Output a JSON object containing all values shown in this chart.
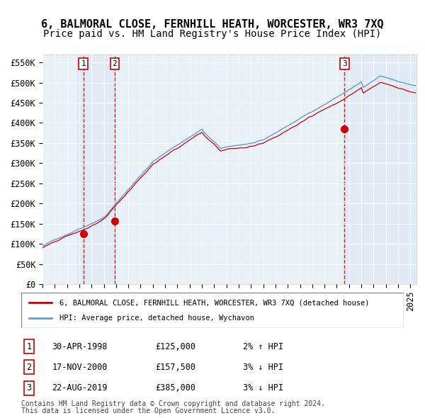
{
  "title": "6, BALMORAL CLOSE, FERNHILL HEATH, WORCESTER, WR3 7XQ",
  "subtitle": "Price paid vs. HM Land Registry's House Price Index (HPI)",
  "transactions": [
    {
      "label": "1",
      "date": "30-APR-1998",
      "price": 125000,
      "year": 1998.33,
      "hpi_pct": "2% ↑ HPI"
    },
    {
      "label": "2",
      "date": "17-NOV-2000",
      "price": 157500,
      "year": 2000.88,
      "hpi_pct": "3% ↓ HPI"
    },
    {
      "label": "3",
      "date": "22-AUG-2019",
      "price": 385000,
      "year": 2019.63,
      "hpi_pct": "3% ↓ HPI"
    }
  ],
  "legend_line1": "6, BALMORAL CLOSE, FERNHILL HEATH, WORCESTER, WR3 7XQ (detached house)",
  "legend_line2": "HPI: Average price, detached house, Wychavon",
  "footnote1": "Contains HM Land Registry data © Crown copyright and database right 2024.",
  "footnote2": "This data is licensed under the Open Government Licence v3.0.",
  "ylim": [
    0,
    570000
  ],
  "yticks": [
    0,
    50000,
    100000,
    150000,
    200000,
    250000,
    300000,
    350000,
    400000,
    450000,
    500000,
    550000
  ],
  "xlim_start": 1995.0,
  "xlim_end": 2025.5,
  "hpi_line_color": "#6699cc",
  "price_line_color": "#cc0000",
  "dot_color": "#cc0000",
  "bg_chart": "#e8f0f8",
  "bg_highlight": "#d0e0f0",
  "grid_color": "#ffffff",
  "dashed_line_color": "#cc0000",
  "title_fontsize": 11,
  "subtitle_fontsize": 10,
  "tick_fontsize": 8.5
}
